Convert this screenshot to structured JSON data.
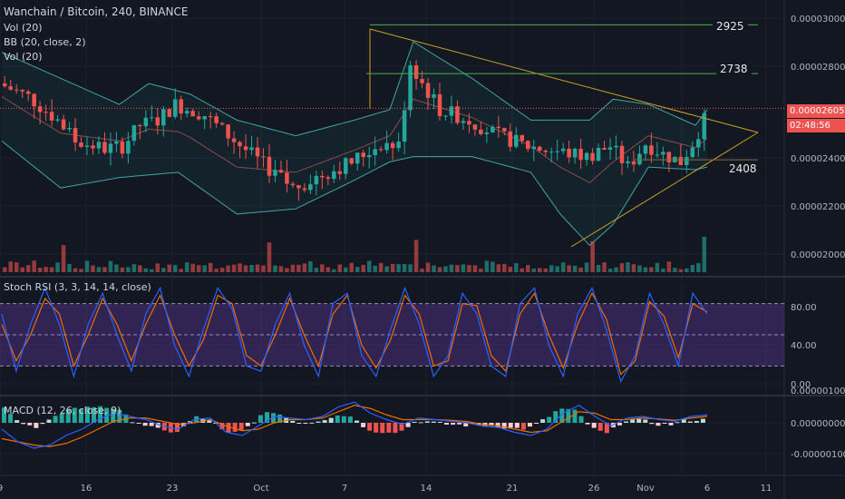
{
  "header": {
    "symbol_line": "Wanchain / Bitcoin, 240, BINANCE",
    "indicators": [
      "Vol (20)",
      "BB (20, close, 2)",
      "Vol (20)"
    ]
  },
  "annotations": {
    "level_high": "2925",
    "level_mid": "2738",
    "level_low": "2408"
  },
  "price_tags": {
    "last_price": "0.00002605",
    "countdown": "02:48:56",
    "last_color": "#ef5350"
  },
  "stoch_title": "Stoch RSI (3, 3, 14, 14, close)",
  "macd_title": "MACD (12, 26, close, 9)",
  "colors": {
    "up": "#26a69a",
    "down": "#ef5350",
    "bb": "#3fa7a0",
    "trend": "#c9a227",
    "level": "#4caf50",
    "stoch_band": "#4a2d7a",
    "k": "#2962ff",
    "d": "#ef6c00"
  },
  "chart_data": [
    {
      "type": "candlestick",
      "title": "Wanchain / Bitcoin, 240, BINANCE",
      "y_ticks": [
        "0.00003000",
        "0.00002800",
        "0.00002400",
        "0.00002200",
        "0.00002000"
      ],
      "ylim": [
        1.96e-05,
        3.02e-05
      ],
      "x_ticks": [
        "9",
        "16",
        "23",
        "Oct",
        "7",
        "14",
        "21",
        "26",
        "Nov",
        "6",
        "11"
      ],
      "path_points": [
        [
          0,
          2700
        ],
        [
          5,
          2650
        ],
        [
          10,
          2560
        ],
        [
          13,
          2480
        ],
        [
          18,
          2450
        ],
        [
          21,
          2460
        ],
        [
          24,
          2540
        ],
        [
          27,
          2560
        ],
        [
          30,
          2620
        ],
        [
          35,
          2580
        ],
        [
          38,
          2520
        ],
        [
          45,
          2390
        ],
        [
          50,
          2300
        ],
        [
          55,
          2350
        ],
        [
          60,
          2400
        ],
        [
          65,
          2470
        ],
        [
          68,
          2460
        ],
        [
          70,
          2780
        ],
        [
          72,
          2700
        ],
        [
          75,
          2600
        ],
        [
          80,
          2560
        ],
        [
          85,
          2500
        ],
        [
          90,
          2460
        ],
        [
          95,
          2440
        ],
        [
          100,
          2420
        ],
        [
          104,
          2460
        ],
        [
          107,
          2380
        ],
        [
          110,
          2470
        ],
        [
          113,
          2430
        ],
        [
          116,
          2400
        ],
        [
          118,
          2470
        ],
        [
          120,
          2560
        ]
      ],
      "bb_upper": [
        [
          0,
          2820
        ],
        [
          10,
          2720
        ],
        [
          20,
          2620
        ],
        [
          25,
          2700
        ],
        [
          32,
          2660
        ],
        [
          40,
          2560
        ],
        [
          50,
          2500
        ],
        [
          60,
          2560
        ],
        [
          66,
          2600
        ],
        [
          70,
          2860
        ],
        [
          80,
          2720
        ],
        [
          90,
          2560
        ],
        [
          100,
          2560
        ],
        [
          104,
          2640
        ],
        [
          110,
          2620
        ],
        [
          118,
          2540
        ],
        [
          120,
          2600
        ]
      ],
      "bb_lower": [
        [
          0,
          2480
        ],
        [
          10,
          2300
        ],
        [
          20,
          2340
        ],
        [
          30,
          2360
        ],
        [
          40,
          2200
        ],
        [
          50,
          2220
        ],
        [
          60,
          2330
        ],
        [
          66,
          2400
        ],
        [
          70,
          2420
        ],
        [
          80,
          2420
        ],
        [
          90,
          2360
        ],
        [
          95,
          2200
        ],
        [
          100,
          2080
        ],
        [
          104,
          2160
        ],
        [
          110,
          2380
        ],
        [
          118,
          2370
        ],
        [
          120,
          2380
        ]
      ],
      "levels": [
        {
          "value": 2925,
          "label": "2925"
        },
        {
          "value": 2738,
          "label": "2738"
        },
        {
          "value": 2408,
          "label": "2408"
        }
      ],
      "current_price": 2.605e-05
    },
    {
      "type": "line",
      "title": "Stoch RSI (3, 3, 14, 14, close)",
      "y_ticks": [
        "80.00",
        "40.00",
        "0.00"
      ],
      "ylim": [
        -5,
        105
      ],
      "band": [
        20,
        80
      ],
      "series": [
        {
          "values": [
            70,
            15,
            60,
            95,
            60,
            10,
            60,
            90,
            50,
            15,
            70,
            95,
            40,
            10,
            55,
            95,
            75,
            20,
            15,
            60,
            90,
            40,
            10,
            80,
            90,
            30,
            10,
            55,
            95,
            60,
            10,
            30,
            90,
            70,
            20,
            10,
            80,
            95,
            40,
            10,
            70,
            95,
            55,
            5,
            30,
            90,
            60,
            20,
            90,
            70
          ]
        },
        {
          "values": [
            60,
            25,
            50,
            85,
            70,
            20,
            50,
            85,
            60,
            25,
            60,
            88,
            50,
            20,
            45,
            88,
            80,
            30,
            20,
            50,
            85,
            50,
            20,
            70,
            88,
            40,
            18,
            45,
            88,
            70,
            20,
            25,
            80,
            78,
            30,
            15,
            70,
            90,
            50,
            18,
            60,
            90,
            65,
            12,
            25,
            82,
            68,
            28,
            80,
            72
          ]
        }
      ]
    },
    {
      "type": "bar",
      "title": "MACD (12, 26, close, 9)",
      "y_ticks": [
        "0.00000100",
        "0.00000000",
        "-0.00000100"
      ],
      "ylim": [
        -1.5e-06,
        1.2e-06
      ],
      "series": [
        {
          "values": [
            -20,
            -60,
            -80,
            -70,
            -40,
            -20,
            10,
            30,
            20,
            10,
            -10,
            -20,
            10,
            15,
            -30,
            -40,
            -10,
            20,
            15,
            10,
            20,
            50,
            65,
            30,
            10,
            -5,
            15,
            10,
            5,
            0,
            -10,
            -15,
            -30,
            -40,
            -20,
            30,
            55,
            20,
            -10,
            15,
            20,
            10,
            5,
            20,
            25
          ]
        },
        {
          "values": [
            -50,
            -60,
            -70,
            -75,
            -65,
            -45,
            -20,
            5,
            15,
            15,
            5,
            -5,
            0,
            10,
            -10,
            -25,
            -20,
            0,
            10,
            10,
            15,
            35,
            55,
            45,
            25,
            10,
            10,
            10,
            8,
            4,
            -5,
            -10,
            -20,
            -30,
            -25,
            5,
            35,
            30,
            10,
            10,
            15,
            12,
            8,
            15,
            20
          ]
        }
      ]
    }
  ]
}
